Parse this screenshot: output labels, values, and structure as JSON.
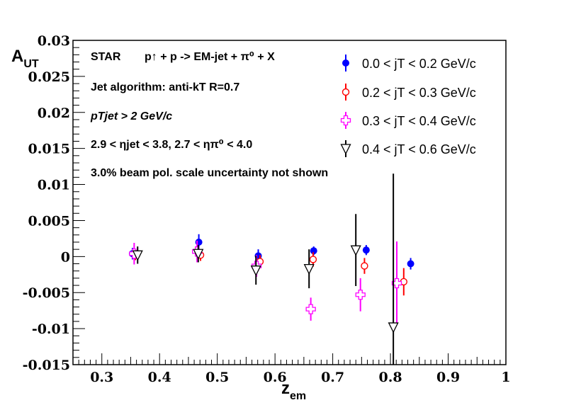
{
  "chart_data": {
    "type": "scatter",
    "title": "",
    "xlabel": "z_em",
    "ylabel": "A_UT",
    "xlim": [
      0.25,
      1.0
    ],
    "ylim": [
      -0.015,
      0.03
    ],
    "x_ticks": [
      "0.3",
      "0.4",
      "0.5",
      "0.6",
      "0.7",
      "0.8",
      "0.9",
      "1"
    ],
    "x_tick_values": [
      0.3,
      0.4,
      0.5,
      0.6,
      0.7,
      0.8,
      0.9,
      1.0
    ],
    "y_ticks": [
      "-0.015",
      "-0.01",
      "-0.005",
      "0",
      "0.005",
      "0.01",
      "0.015",
      "0.02",
      "0.025",
      "0.03"
    ],
    "y_tick_values": [
      -0.015,
      -0.01,
      -0.005,
      0,
      0.005,
      0.01,
      0.015,
      0.02,
      0.025,
      0.03
    ],
    "grid": false,
    "legend_position": "top-right",
    "annotations": {
      "experiment": "STAR",
      "process": "p↑ + p -> EM-jet + π⁰ + X",
      "algorithm": "Jet algorithm: anti-kT R=0.7",
      "pt_cut": "pTjet > 2 GeV/c",
      "eta_cut": "2.9 < ηjet < 3.8, 2.7 < ηπ⁰ < 4.0",
      "pol_note": "3.0% beam pol. scale uncertainty not shown"
    },
    "series": [
      {
        "name": "0.0 < jT < 0.2 GeV/c",
        "marker": "filled-circle",
        "color": "#0000ff",
        "x": [
          0.353,
          0.468,
          0.571,
          0.667,
          0.758,
          0.835
        ],
        "y": [
          0.0004,
          0.002,
          0.0001,
          0.0008,
          0.0009,
          -0.001
        ],
        "err": [
          0.0008,
          0.0011,
          0.0009,
          0.0006,
          0.0007,
          0.0008
        ]
      },
      {
        "name": "0.2 < jT < 0.3 GeV/c",
        "marker": "open-circle",
        "color": "#ff0000",
        "x": [
          0.358,
          0.471,
          0.574,
          0.666,
          0.755,
          0.823
        ],
        "y": [
          0.0002,
          0.0002,
          -0.0007,
          -0.0004,
          -0.0013,
          -0.0035
        ],
        "err": [
          0.0007,
          0.0008,
          0.0009,
          0.001,
          0.0011,
          0.0019
        ]
      },
      {
        "name": "0.3 < jT < 0.4 GeV/c",
        "marker": "open-cross",
        "color": "#ff00ff",
        "x": [
          0.356,
          0.465,
          0.568,
          0.662,
          0.748,
          0.811
        ],
        "y": [
          0.0004,
          0.0007,
          -0.0013,
          -0.0073,
          -0.0053,
          -0.0037
        ],
        "err": [
          0.0015,
          0.0015,
          0.0015,
          0.0016,
          0.0023,
          0.0058
        ]
      },
      {
        "name": "0.4 < jT < 0.6 GeV/c",
        "marker": "open-triangle-down",
        "color": "#000000",
        "x": [
          0.362,
          0.467,
          0.567,
          0.659,
          0.74,
          0.805
        ],
        "y": [
          0.0002,
          0.0004,
          -0.0019,
          -0.0017,
          0.0009,
          -0.0098
        ],
        "err": [
          0.0012,
          0.0012,
          0.002,
          0.0027,
          0.005,
          0.0213
        ]
      }
    ]
  }
}
